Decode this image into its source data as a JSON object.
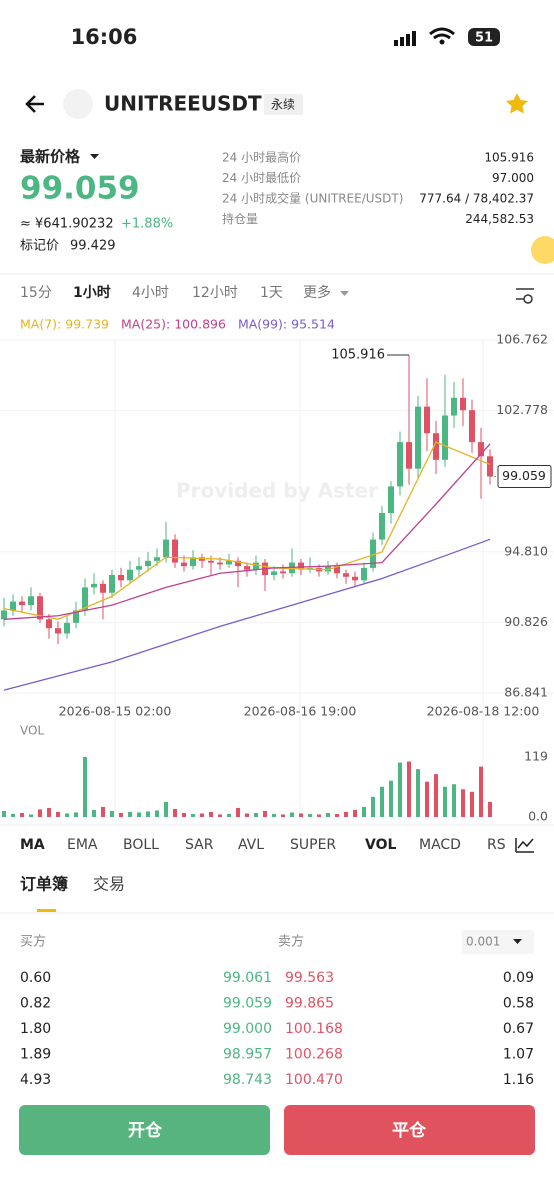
{
  "status": {
    "time": "16:06",
    "battery": "51"
  },
  "header": {
    "title": "UNITREEUSDT",
    "tag": "永续"
  },
  "price": {
    "label": "最新价格",
    "last": "99.059",
    "cny": "≈ ¥641.90232",
    "change": "+1.88%",
    "mark_label": "标记价",
    "mark": "99.429"
  },
  "stats": [
    {
      "label": "24 小时最高价",
      "value": "105.916"
    },
    {
      "label": "24 小时最低价",
      "value": "97.000"
    },
    {
      "label": "24 小时成交量 (UNITREE/USDT)",
      "value": "777.64 / 78,402.37"
    },
    {
      "label": "持仓量",
      "value": "244,582.53"
    }
  ],
  "intervals": [
    "15分",
    "1小时",
    "4小时",
    "12小时",
    "1天",
    "更多"
  ],
  "chart_data": {
    "type": "candlestick",
    "ylim": [
      86.841,
      106.762
    ],
    "yticks": [
      106.762,
      102.778,
      {
        "value": 94.81,
        "label": "94.810"
      },
      90.826,
      86.841
    ],
    "watermark": "Provided by Aster",
    "x_labels": [
      "2026-08-15 02:00",
      "2026-08-16 19:00",
      "2026-08-18 12:00"
    ],
    "up_color": "#4cb782",
    "down_color": "#e05263",
    "candles": [
      [
        91.0,
        92.2,
        90.6,
        91.5
      ],
      [
        91.5,
        92.4,
        91.2,
        92.0
      ],
      [
        92.0,
        92.3,
        91.4,
        91.8
      ],
      [
        91.8,
        92.8,
        91.5,
        92.3
      ],
      [
        92.3,
        92.5,
        90.8,
        91.0
      ],
      [
        91.0,
        91.3,
        89.9,
        90.5
      ],
      [
        90.5,
        90.9,
        89.6,
        90.2
      ],
      [
        90.2,
        91.2,
        89.9,
        90.8
      ],
      [
        90.8,
        92.0,
        90.5,
        91.5
      ],
      [
        91.5,
        93.3,
        91.2,
        92.8
      ],
      [
        92.8,
        93.6,
        92.4,
        93.0
      ],
      [
        93.0,
        93.2,
        91.0,
        92.5
      ],
      [
        92.5,
        93.8,
        92.2,
        93.5
      ],
      [
        93.5,
        93.9,
        92.8,
        93.2
      ],
      [
        93.2,
        94.3,
        93.0,
        93.8
      ],
      [
        93.8,
        94.5,
        93.4,
        94.0
      ],
      [
        94.0,
        94.8,
        93.7,
        94.3
      ],
      [
        94.3,
        95.0,
        94.0,
        94.5
      ],
      [
        94.5,
        96.5,
        94.2,
        95.5
      ],
      [
        95.5,
        95.8,
        93.9,
        94.2
      ],
      [
        94.2,
        94.6,
        93.7,
        94.0
      ],
      [
        94.0,
        94.9,
        93.8,
        94.5
      ],
      [
        94.5,
        94.7,
        93.9,
        94.3
      ],
      [
        94.3,
        94.6,
        93.5,
        94.2
      ],
      [
        94.2,
        94.5,
        93.8,
        94.1
      ],
      [
        94.1,
        94.7,
        93.9,
        94.3
      ],
      [
        94.3,
        94.5,
        92.8,
        94.0
      ],
      [
        94.0,
        94.2,
        93.4,
        93.8
      ],
      [
        93.8,
        94.6,
        93.5,
        94.2
      ],
      [
        94.2,
        94.4,
        92.6,
        93.5
      ],
      [
        93.5,
        94.0,
        93.2,
        93.7
      ],
      [
        93.7,
        94.1,
        93.3,
        93.6
      ],
      [
        93.6,
        95.0,
        93.4,
        94.2
      ],
      [
        94.2,
        94.4,
        93.5,
        93.8
      ],
      [
        93.8,
        94.5,
        93.6,
        93.9
      ],
      [
        93.9,
        94.1,
        93.4,
        93.7
      ],
      [
        93.7,
        94.3,
        93.5,
        94.0
      ],
      [
        94.0,
        94.2,
        93.3,
        93.6
      ],
      [
        93.6,
        93.8,
        93.0,
        93.4
      ],
      [
        93.4,
        93.7,
        92.8,
        93.2
      ],
      [
        93.2,
        94.2,
        93.0,
        93.9
      ],
      [
        93.9,
        95.9,
        93.7,
        95.5
      ],
      [
        95.5,
        97.4,
        95.2,
        97.0
      ],
      [
        97.0,
        98.8,
        96.4,
        98.5
      ],
      [
        98.5,
        101.6,
        98.0,
        101.0
      ],
      [
        101.0,
        105.916,
        98.6,
        99.5
      ],
      [
        99.5,
        103.6,
        99.0,
        103.0
      ],
      [
        103.0,
        104.6,
        100.5,
        101.5
      ],
      [
        101.5,
        102.2,
        99.2,
        100.0
      ],
      [
        100.0,
        104.8,
        99.6,
        102.5
      ],
      [
        102.5,
        104.4,
        101.8,
        103.5
      ],
      [
        103.5,
        104.6,
        101.9,
        102.8
      ],
      [
        102.8,
        103.4,
        100.4,
        101.0
      ],
      [
        101.0,
        101.8,
        97.8,
        100.2
      ],
      [
        100.2,
        100.6,
        98.6,
        99.059
      ]
    ],
    "ma_step": 6,
    "ma": [
      {
        "name": "MA(7):",
        "color": "#e6b422",
        "values": [
          91.6,
          91.0,
          92.3,
          94.5,
          94.4,
          93.9,
          93.8,
          94.8,
          101.0,
          99.739
        ]
      },
      {
        "name": "MA(25):",
        "color": "#c2408f",
        "values": [
          91.0,
          91.2,
          91.8,
          92.8,
          93.6,
          93.9,
          94.0,
          94.2,
          97.5,
          100.896
        ]
      },
      {
        "name": "MA(99):",
        "color": "#7b5cc9",
        "values": [
          87.0,
          87.8,
          88.6,
          89.6,
          90.6,
          91.5,
          92.4,
          93.3,
          94.4,
          95.514
        ]
      }
    ],
    "volume": {
      "label": "VOL",
      "ylim": [
        0,
        119
      ],
      "yticks": [
        119,
        {
          "value": 0,
          "label": "0.0"
        }
      ],
      "values": [
        12,
        6,
        8,
        5,
        15,
        18,
        10,
        7,
        9,
        119,
        14,
        20,
        12,
        8,
        10,
        9,
        11,
        13,
        30,
        16,
        8,
        6,
        7,
        10,
        5,
        6,
        18,
        7,
        8,
        12,
        6,
        5,
        9,
        7,
        6,
        5,
        8,
        6,
        10,
        14,
        20,
        40,
        60,
        72,
        108,
        110,
        95,
        70,
        85,
        60,
        65,
        55,
        50,
        100,
        30
      ]
    }
  },
  "indicators": [
    "MA",
    "EMA",
    "BOLL",
    "SAR",
    "AVL",
    "SUPER",
    "VOL",
    "MACD",
    "RSI"
  ],
  "orderbook": {
    "tabs": [
      "订单簿",
      "交易"
    ],
    "buy": "买方",
    "sell": "卖方",
    "precision": "0.001",
    "rows": [
      [
        "0.60",
        "99.061",
        "99.563",
        "0.09"
      ],
      [
        "0.82",
        "99.059",
        "99.865",
        "0.58"
      ],
      [
        "1.80",
        "99.000",
        "100.168",
        "0.67"
      ],
      [
        "1.89",
        "98.957",
        "100.268",
        "1.07"
      ],
      [
        "4.93",
        "98.743",
        "100.470",
        "1.16"
      ]
    ]
  },
  "actions": {
    "open": "开仓",
    "close": "平仓"
  }
}
